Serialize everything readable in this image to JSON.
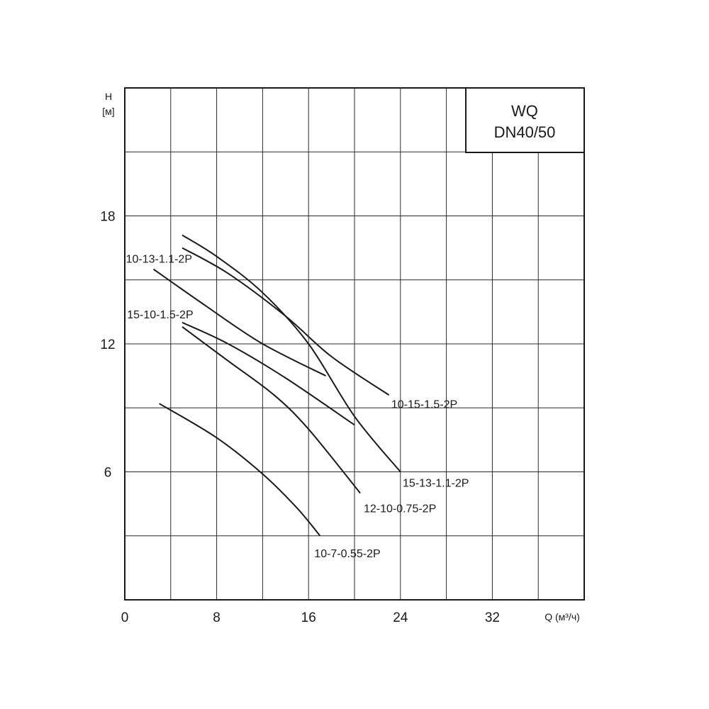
{
  "chart_data": {
    "type": "line",
    "title": [
      "WQ",
      "DN40/50"
    ],
    "xlabel": "Q (м³/ч)",
    "ylabel": [
      "H",
      "[м]"
    ],
    "xlim": [
      0,
      40
    ],
    "ylim": [
      0,
      24
    ],
    "x_ticks": [
      0,
      8,
      16,
      24,
      32
    ],
    "y_ticks": [
      6,
      12,
      18
    ],
    "x_grid_step": 4,
    "y_grid_step": 3,
    "grid": true,
    "legend": "inline labels",
    "series": [
      {
        "name": "10-15-1.5-2P",
        "points": [
          [
            5,
            16.5
          ],
          [
            9,
            15.3
          ],
          [
            14,
            13.3
          ],
          [
            18,
            11.4
          ],
          [
            23,
            9.6
          ]
        ],
        "label_at": [
          23.2,
          9.0
        ]
      },
      {
        "name": "15-13-1.1-2P",
        "points": [
          [
            5,
            17.1
          ],
          [
            8,
            16.1
          ],
          [
            12,
            14.4
          ],
          [
            16,
            12.0
          ],
          [
            20,
            8.6
          ],
          [
            24,
            6.0
          ]
        ],
        "label_at": [
          24.2,
          5.3
        ]
      },
      {
        "name": "10-13-1.1-2P",
        "points": [
          [
            2.5,
            15.5
          ],
          [
            7,
            13.8
          ],
          [
            12,
            12.0
          ],
          [
            17.5,
            10.5
          ]
        ],
        "label_at": [
          0.1,
          15.8
        ]
      },
      {
        "name": "15-10-1.5-2P",
        "points": [
          [
            5,
            13.0
          ],
          [
            9,
            12.0
          ],
          [
            14,
            10.4
          ],
          [
            20,
            8.2
          ]
        ],
        "label_at": [
          0.2,
          13.2
        ]
      },
      {
        "name": "12-10-0.75-2P",
        "points": [
          [
            5,
            12.8
          ],
          [
            9,
            11.2
          ],
          [
            13,
            9.6
          ],
          [
            16,
            8.0
          ],
          [
            20.5,
            5.0
          ]
        ],
        "label_at": [
          20.8,
          4.1
        ]
      },
      {
        "name": "10-7-0.55-2P",
        "points": [
          [
            3,
            9.2
          ],
          [
            8,
            7.6
          ],
          [
            12,
            5.9
          ],
          [
            15,
            4.3
          ],
          [
            17,
            3.0
          ]
        ],
        "label_at": [
          16.5,
          2.0
        ]
      }
    ]
  }
}
